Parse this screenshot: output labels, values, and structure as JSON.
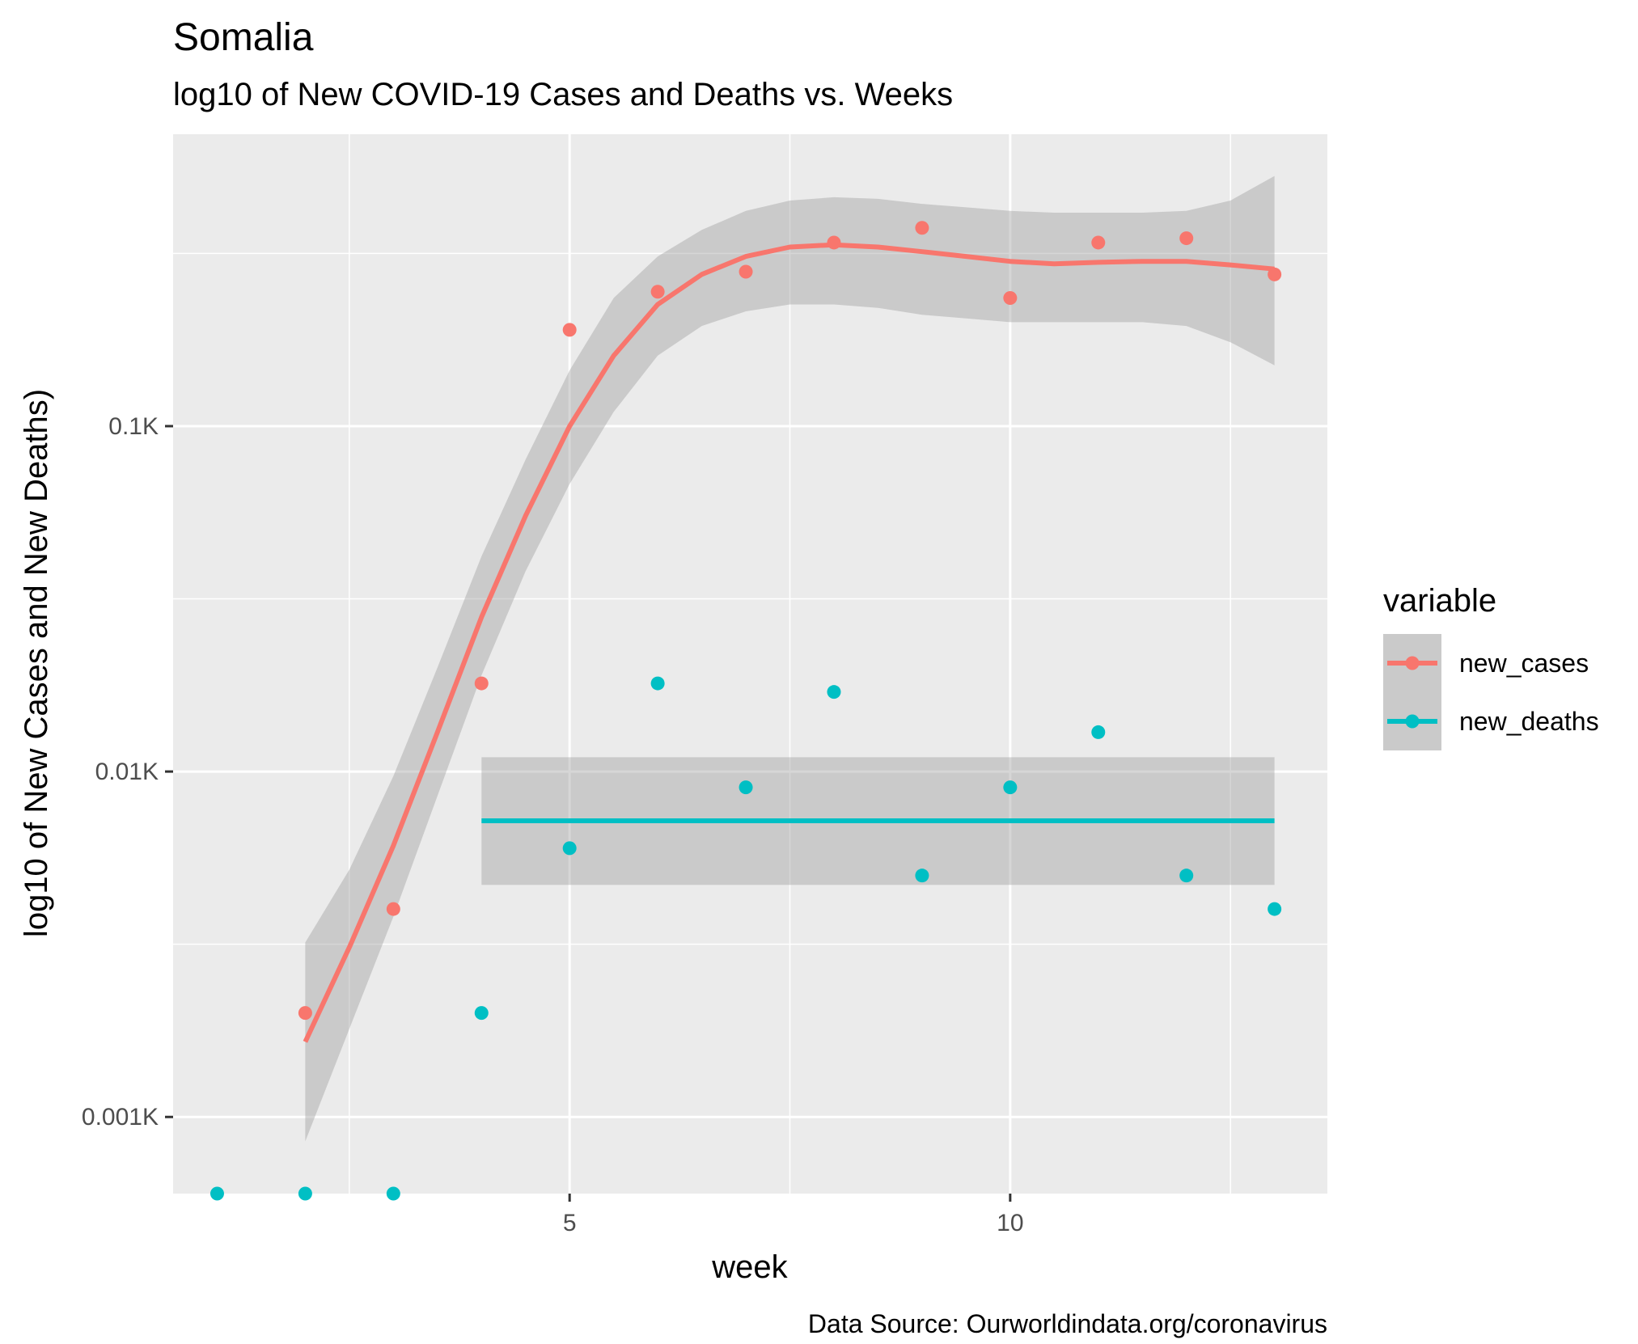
{
  "chart_data": {
    "type": "scatter",
    "title": "Somalia",
    "subtitle": "log10 of New COVID-19 Cases and Deaths vs. Weeks",
    "xlabel": "week",
    "ylabel": "log10 of New Cases and New Deaths)",
    "caption": "Data Source: Ourworldindata.org/coronavirus",
    "x_scale": "linear",
    "y_scale": "log10",
    "xlim": [
      0.5,
      13.6
    ],
    "ylim": [
      0.0006,
      0.7
    ],
    "x_ticks": [
      5,
      10
    ],
    "x_tick_labels": [
      "5",
      "10"
    ],
    "y_ticks": [
      0.001,
      0.01,
      0.1
    ],
    "y_tick_labels": [
      "0.001K",
      "0.01K",
      "0.1K"
    ],
    "grid": true,
    "legend": {
      "title": "variable",
      "position": "right",
      "entries": [
        "new_cases",
        "new_deaths"
      ]
    },
    "colors": {
      "new_cases": "#F8766D",
      "new_deaths": "#00BFC4",
      "panel": "#EBEBEB",
      "band": "#999999"
    },
    "series": [
      {
        "name": "new_cases",
        "points": [
          {
            "x": 2,
            "y": 0.002
          },
          {
            "x": 3,
            "y": 0.004
          },
          {
            "x": 4,
            "y": 0.018
          },
          {
            "x": 5,
            "y": 0.19
          },
          {
            "x": 6,
            "y": 0.245
          },
          {
            "x": 7,
            "y": 0.28
          },
          {
            "x": 8,
            "y": 0.34
          },
          {
            "x": 9,
            "y": 0.375
          },
          {
            "x": 10,
            "y": 0.235
          },
          {
            "x": 11,
            "y": 0.34
          },
          {
            "x": 12,
            "y": 0.35
          },
          {
            "x": 13,
            "y": 0.275
          }
        ],
        "smooth": [
          {
            "x": 2,
            "y": 0.00165,
            "lo": 0.00085,
            "hi": 0.0032
          },
          {
            "x": 2.5,
            "y": 0.0031,
            "lo": 0.0018,
            "hi": 0.0052
          },
          {
            "x": 3,
            "y": 0.0061,
            "lo": 0.0038,
            "hi": 0.0097
          },
          {
            "x": 3.5,
            "y": 0.013,
            "lo": 0.0085,
            "hi": 0.02
          },
          {
            "x": 4,
            "y": 0.028,
            "lo": 0.019,
            "hi": 0.042
          },
          {
            "x": 4.5,
            "y": 0.055,
            "lo": 0.038,
            "hi": 0.08
          },
          {
            "x": 5,
            "y": 0.1,
            "lo": 0.068,
            "hi": 0.145
          },
          {
            "x": 5.5,
            "y": 0.16,
            "lo": 0.11,
            "hi": 0.235
          },
          {
            "x": 6,
            "y": 0.225,
            "lo": 0.16,
            "hi": 0.31
          },
          {
            "x": 6.5,
            "y": 0.275,
            "lo": 0.195,
            "hi": 0.37
          },
          {
            "x": 7,
            "y": 0.31,
            "lo": 0.215,
            "hi": 0.42
          },
          {
            "x": 7.5,
            "y": 0.33,
            "lo": 0.225,
            "hi": 0.45
          },
          {
            "x": 8,
            "y": 0.335,
            "lo": 0.225,
            "hi": 0.46
          },
          {
            "x": 8.5,
            "y": 0.33,
            "lo": 0.22,
            "hi": 0.455
          },
          {
            "x": 9,
            "y": 0.32,
            "lo": 0.21,
            "hi": 0.44
          },
          {
            "x": 9.5,
            "y": 0.31,
            "lo": 0.205,
            "hi": 0.43
          },
          {
            "x": 10,
            "y": 0.3,
            "lo": 0.2,
            "hi": 0.42
          },
          {
            "x": 10.5,
            "y": 0.295,
            "lo": 0.2,
            "hi": 0.415
          },
          {
            "x": 11,
            "y": 0.298,
            "lo": 0.2,
            "hi": 0.415
          },
          {
            "x": 11.5,
            "y": 0.3,
            "lo": 0.2,
            "hi": 0.415
          },
          {
            "x": 12,
            "y": 0.3,
            "lo": 0.195,
            "hi": 0.42
          },
          {
            "x": 12.5,
            "y": 0.293,
            "lo": 0.175,
            "hi": 0.45
          },
          {
            "x": 13,
            "y": 0.285,
            "lo": 0.15,
            "hi": 0.53
          }
        ]
      },
      {
        "name": "new_deaths",
        "points": [
          {
            "x": 1,
            "y": 0.0006
          },
          {
            "x": 2,
            "y": 0.0006
          },
          {
            "x": 3,
            "y": 0.0006
          },
          {
            "x": 4,
            "y": 0.002
          },
          {
            "x": 5,
            "y": 0.006
          },
          {
            "x": 6,
            "y": 0.018
          },
          {
            "x": 7,
            "y": 0.009
          },
          {
            "x": 8,
            "y": 0.017
          },
          {
            "x": 9,
            "y": 0.005
          },
          {
            "x": 10,
            "y": 0.009
          },
          {
            "x": 11,
            "y": 0.013
          },
          {
            "x": 12,
            "y": 0.005
          },
          {
            "x": 13,
            "y": 0.004
          }
        ],
        "smooth": [
          {
            "x": 4,
            "y": 0.0072,
            "lo": 0.0047,
            "hi": 0.011
          },
          {
            "x": 13,
            "y": 0.0072,
            "lo": 0.0047,
            "hi": 0.011
          }
        ]
      }
    ]
  }
}
